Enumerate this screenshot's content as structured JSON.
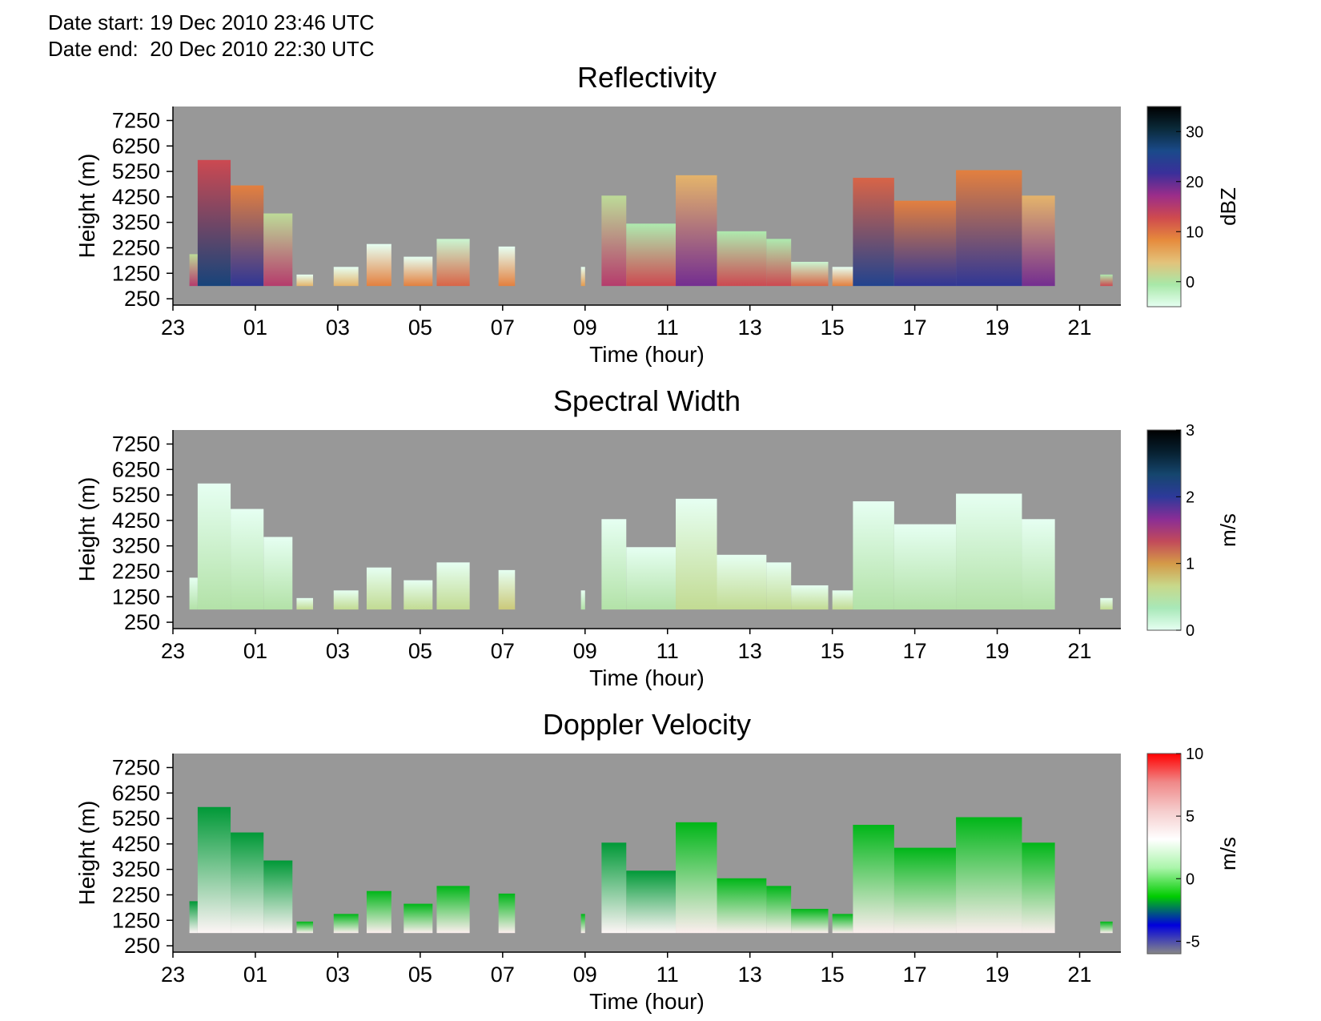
{
  "header": {
    "date_start": "Date start: 19 Dec 2010 23:46 UTC",
    "date_end": "Date end:  20 Dec 2010 22:30 UTC"
  },
  "colors": {
    "background_fill": "#989898",
    "reflectivity_ramp": [
      "#e6fff2",
      "#a8e8a8",
      "#e3c27a",
      "#e68a3c",
      "#cf4a4e",
      "#9b2d8a",
      "#3a2f9a",
      "#1a4a8a",
      "#0a2a3a",
      "#000000"
    ],
    "spectral_ramp": [
      "#e6fff2",
      "#a8e8b8",
      "#c8d88a",
      "#d49a48",
      "#c24a5a",
      "#8a2d96",
      "#2d3a9a",
      "#15466e",
      "#072030",
      "#000000"
    ],
    "velocity_ramp": [
      "#888888",
      "#0000dd",
      "#00cc00",
      "#aaf5aa",
      "#ffffff",
      "#f5cccc",
      "#f08888",
      "#ff0000"
    ]
  },
  "chart_data": [
    {
      "type": "heatmap",
      "title": "Reflectivity",
      "xlabel": "Time (hour)",
      "ylabel": "Height (m)",
      "xticks": [
        "23",
        "01",
        "03",
        "05",
        "07",
        "09",
        "11",
        "13",
        "15",
        "17",
        "19",
        "21"
      ],
      "yticks": [
        "250",
        "1250",
        "2250",
        "3250",
        "4250",
        "5250",
        "6250",
        "7250"
      ],
      "xlim": [
        23,
        46
      ],
      "ylim": [
        0,
        7800
      ],
      "colorbar": {
        "label": "dBZ",
        "ticks": [
          "0",
          "10",
          "20",
          "30"
        ],
        "tick_values": [
          0,
          10,
          20,
          30
        ],
        "range": [
          -5,
          35
        ]
      },
      "echo_base_m": 750,
      "echo_tops": [
        {
          "start": 23.4,
          "end": 23.6,
          "top_m": 2000,
          "level": 0.5
        },
        {
          "start": 23.6,
          "end": 24.4,
          "top_m": 5700,
          "level": 0.8
        },
        {
          "start": 24.4,
          "end": 25.2,
          "top_m": 4700,
          "level": 0.7
        },
        {
          "start": 25.2,
          "end": 25.9,
          "top_m": 3600,
          "level": 0.5
        },
        {
          "start": 26.0,
          "end": 26.4,
          "top_m": 1200,
          "level": 0.25
        },
        {
          "start": 26.9,
          "end": 27.5,
          "top_m": 1500,
          "level": 0.25
        },
        {
          "start": 27.7,
          "end": 28.3,
          "top_m": 2400,
          "level": 0.35
        },
        {
          "start": 28.6,
          "end": 29.3,
          "top_m": 1900,
          "level": 0.35
        },
        {
          "start": 29.4,
          "end": 30.2,
          "top_m": 2600,
          "level": 0.4
        },
        {
          "start": 30.9,
          "end": 31.3,
          "top_m": 2300,
          "level": 0.35
        },
        {
          "start": 32.9,
          "end": 33.0,
          "top_m": 1500,
          "level": 0.3
        },
        {
          "start": 33.4,
          "end": 34.0,
          "top_m": 4300,
          "level": 0.5
        },
        {
          "start": 34.0,
          "end": 35.2,
          "top_m": 3200,
          "level": 0.45
        },
        {
          "start": 35.2,
          "end": 36.2,
          "top_m": 5100,
          "level": 0.6
        },
        {
          "start": 36.2,
          "end": 37.4,
          "top_m": 2900,
          "level": 0.45
        },
        {
          "start": 37.4,
          "end": 38.0,
          "top_m": 2600,
          "level": 0.45
        },
        {
          "start": 38.0,
          "end": 38.9,
          "top_m": 1700,
          "level": 0.4
        },
        {
          "start": 39.0,
          "end": 39.5,
          "top_m": 1500,
          "level": 0.35
        },
        {
          "start": 39.5,
          "end": 40.5,
          "top_m": 5000,
          "level": 0.75
        },
        {
          "start": 40.5,
          "end": 42.0,
          "top_m": 4100,
          "level": 0.7
        },
        {
          "start": 42.0,
          "end": 43.6,
          "top_m": 5300,
          "level": 0.7
        },
        {
          "start": 43.6,
          "end": 44.4,
          "top_m": 4300,
          "level": 0.6
        },
        {
          "start": 45.5,
          "end": 45.8,
          "top_m": 1200,
          "level": 0.45
        }
      ]
    },
    {
      "type": "heatmap",
      "title": "Spectral Width",
      "xlabel": "Time (hour)",
      "ylabel": "Height (m)",
      "xticks": [
        "23",
        "01",
        "03",
        "05",
        "07",
        "09",
        "11",
        "13",
        "15",
        "17",
        "19",
        "21"
      ],
      "yticks": [
        "250",
        "1250",
        "2250",
        "3250",
        "4250",
        "5250",
        "6250",
        "7250"
      ],
      "xlim": [
        23,
        46
      ],
      "ylim": [
        0,
        7800
      ],
      "colorbar": {
        "label": "m/s",
        "ticks": [
          "0",
          "1",
          "2",
          "3"
        ],
        "tick_values": [
          0,
          1,
          2,
          3
        ],
        "range": [
          0,
          3
        ]
      },
      "echo_base_m": 750,
      "echo_tops": [
        {
          "start": 23.4,
          "end": 23.6,
          "top_m": 2000,
          "level": 0.15
        },
        {
          "start": 23.6,
          "end": 24.4,
          "top_m": 5700,
          "level": 0.15
        },
        {
          "start": 24.4,
          "end": 25.2,
          "top_m": 4700,
          "level": 0.15
        },
        {
          "start": 25.2,
          "end": 25.9,
          "top_m": 3600,
          "level": 0.15
        },
        {
          "start": 26.0,
          "end": 26.4,
          "top_m": 1200,
          "level": 0.2
        },
        {
          "start": 26.9,
          "end": 27.5,
          "top_m": 1500,
          "level": 0.2
        },
        {
          "start": 27.7,
          "end": 28.3,
          "top_m": 2400,
          "level": 0.2
        },
        {
          "start": 28.6,
          "end": 29.3,
          "top_m": 1900,
          "level": 0.2
        },
        {
          "start": 29.4,
          "end": 30.2,
          "top_m": 2600,
          "level": 0.2
        },
        {
          "start": 30.9,
          "end": 31.3,
          "top_m": 2300,
          "level": 0.25
        },
        {
          "start": 32.9,
          "end": 33.0,
          "top_m": 1500,
          "level": 0.15
        },
        {
          "start": 33.4,
          "end": 34.0,
          "top_m": 4300,
          "level": 0.15
        },
        {
          "start": 34.0,
          "end": 35.2,
          "top_m": 3200,
          "level": 0.15
        },
        {
          "start": 35.2,
          "end": 36.2,
          "top_m": 5100,
          "level": 0.2
        },
        {
          "start": 36.2,
          "end": 37.4,
          "top_m": 2900,
          "level": 0.2
        },
        {
          "start": 37.4,
          "end": 38.0,
          "top_m": 2600,
          "level": 0.2
        },
        {
          "start": 38.0,
          "end": 38.9,
          "top_m": 1700,
          "level": 0.2
        },
        {
          "start": 39.0,
          "end": 39.5,
          "top_m": 1500,
          "level": 0.2
        },
        {
          "start": 39.5,
          "end": 40.5,
          "top_m": 5000,
          "level": 0.15
        },
        {
          "start": 40.5,
          "end": 42.0,
          "top_m": 4100,
          "level": 0.15
        },
        {
          "start": 42.0,
          "end": 43.6,
          "top_m": 5300,
          "level": 0.15
        },
        {
          "start": 43.6,
          "end": 44.4,
          "top_m": 4300,
          "level": 0.15
        },
        {
          "start": 45.5,
          "end": 45.8,
          "top_m": 1200,
          "level": 0.2
        }
      ]
    },
    {
      "type": "heatmap",
      "title": "Doppler Velocity",
      "xlabel": "Time (hour)",
      "ylabel": "Height (m)",
      "xticks": [
        "23",
        "01",
        "03",
        "05",
        "07",
        "09",
        "11",
        "13",
        "15",
        "17",
        "19",
        "21"
      ],
      "yticks": [
        "250",
        "1250",
        "2250",
        "3250",
        "4250",
        "5250",
        "6250",
        "7250"
      ],
      "xlim": [
        23,
        46
      ],
      "ylim": [
        0,
        7800
      ],
      "colorbar": {
        "label": "m/s",
        "ticks": [
          "-5",
          "0",
          "5",
          "10"
        ],
        "tick_values": [
          -5,
          0,
          5,
          10
        ],
        "range": [
          -6,
          10
        ]
      },
      "echo_base_m": 750,
      "echo_tops": [
        {
          "start": 23.4,
          "end": 23.6,
          "top_m": 2000,
          "level": 0.6
        },
        {
          "start": 23.6,
          "end": 24.4,
          "top_m": 5700,
          "level": 0.6
        },
        {
          "start": 24.4,
          "end": 25.2,
          "top_m": 4700,
          "level": 0.6
        },
        {
          "start": 25.2,
          "end": 25.9,
          "top_m": 3600,
          "level": 0.6
        },
        {
          "start": 26.0,
          "end": 26.4,
          "top_m": 1200,
          "level": 0.62
        },
        {
          "start": 26.9,
          "end": 27.5,
          "top_m": 1500,
          "level": 0.62
        },
        {
          "start": 27.7,
          "end": 28.3,
          "top_m": 2400,
          "level": 0.62
        },
        {
          "start": 28.6,
          "end": 29.3,
          "top_m": 1900,
          "level": 0.62
        },
        {
          "start": 29.4,
          "end": 30.2,
          "top_m": 2600,
          "level": 0.62
        },
        {
          "start": 30.9,
          "end": 31.3,
          "top_m": 2300,
          "level": 0.62
        },
        {
          "start": 32.9,
          "end": 33.0,
          "top_m": 1500,
          "level": 0.62
        },
        {
          "start": 33.4,
          "end": 34.0,
          "top_m": 4300,
          "level": 0.6
        },
        {
          "start": 34.0,
          "end": 35.2,
          "top_m": 3200,
          "level": 0.6
        },
        {
          "start": 35.2,
          "end": 36.2,
          "top_m": 5100,
          "level": 0.62
        },
        {
          "start": 36.2,
          "end": 37.4,
          "top_m": 2900,
          "level": 0.62
        },
        {
          "start": 37.4,
          "end": 38.0,
          "top_m": 2600,
          "level": 0.62
        },
        {
          "start": 38.0,
          "end": 38.9,
          "top_m": 1700,
          "level": 0.62
        },
        {
          "start": 39.0,
          "end": 39.5,
          "top_m": 1500,
          "level": 0.62
        },
        {
          "start": 39.5,
          "end": 40.5,
          "top_m": 5000,
          "level": 0.62
        },
        {
          "start": 40.5,
          "end": 42.0,
          "top_m": 4100,
          "level": 0.62
        },
        {
          "start": 42.0,
          "end": 43.6,
          "top_m": 5300,
          "level": 0.62
        },
        {
          "start": 43.6,
          "end": 44.4,
          "top_m": 4300,
          "level": 0.62
        },
        {
          "start": 45.5,
          "end": 45.8,
          "top_m": 1200,
          "level": 0.62
        }
      ]
    }
  ]
}
